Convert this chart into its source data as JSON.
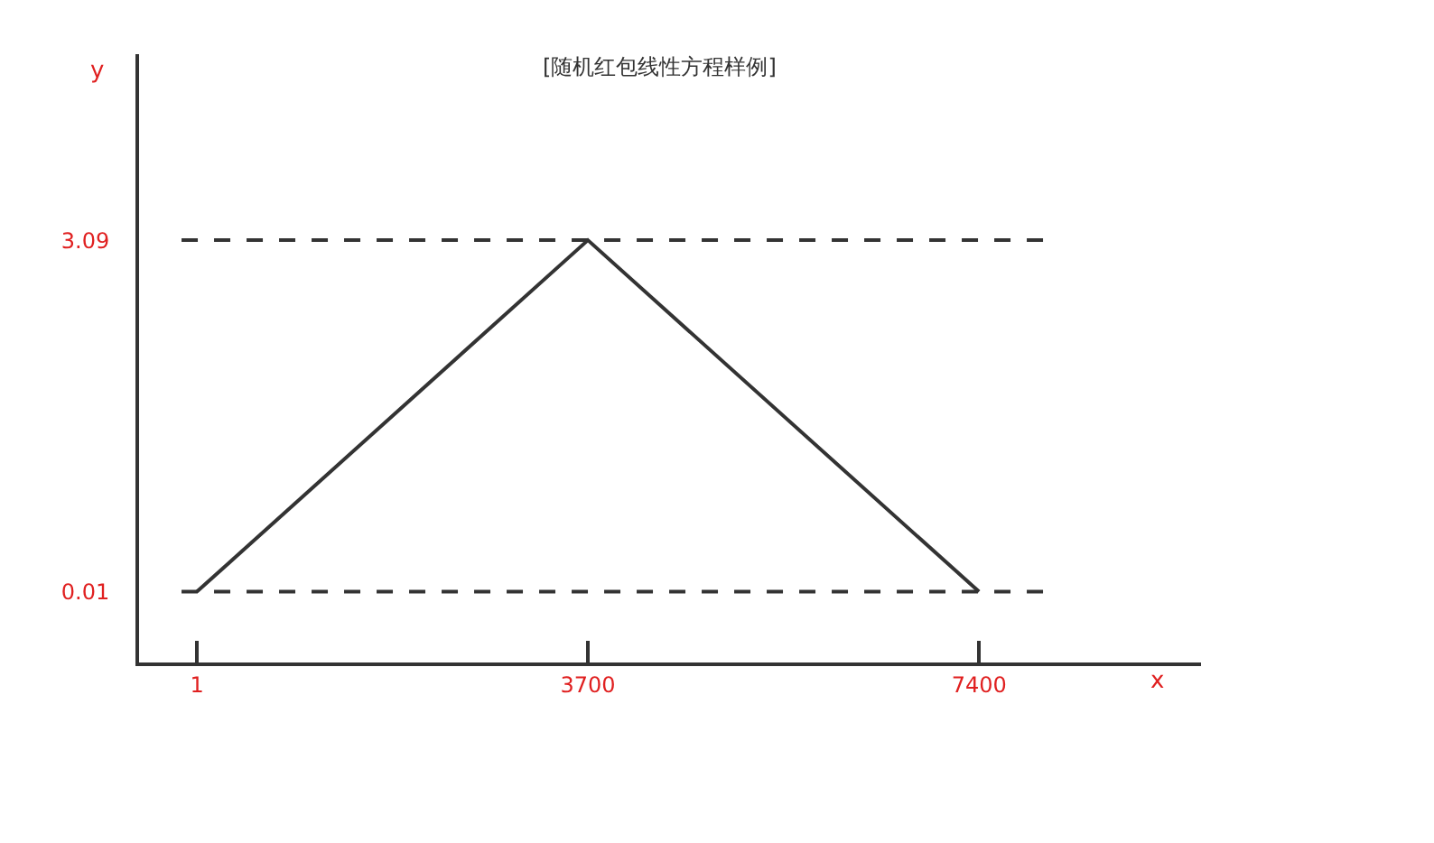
{
  "chart_data": {
    "type": "line",
    "title": "[随机红包线性方程样例]",
    "xlabel": "x",
    "ylabel": "y",
    "x": [
      1,
      3700,
      7400
    ],
    "series": [
      {
        "color": "#333333",
        "values": [
          0.01,
          3.09,
          0.01
        ]
      }
    ],
    "xlim": [
      -546,
      9500
    ],
    "xticks": [
      1,
      3700,
      7400
    ],
    "ylim": [
      -0.61,
      4.72
    ],
    "yticks": [
      0.01,
      3.09
    ],
    "ref_lines": [
      {
        "axis": "y",
        "value": 3.09,
        "color": "#333333",
        "line_style": "dashed"
      },
      {
        "axis": "y",
        "value": 0.01,
        "color": "#333333",
        "line_style": "dashed"
      }
    ],
    "marker": "none",
    "line_style": "solid"
  }
}
